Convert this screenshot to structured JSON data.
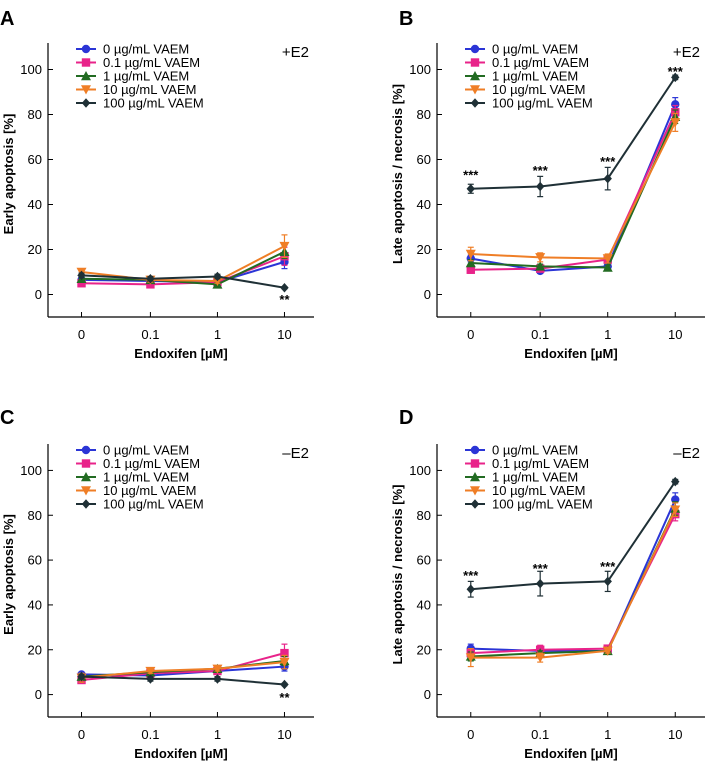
{
  "chart_data": [
    {
      "type": "line",
      "panel": "A",
      "condition": "+E2",
      "xlabel": "Endoxifen [µM]",
      "ylabel": "Early apoptosis [%]",
      "categories": [
        "0",
        "0.1",
        "1",
        "10"
      ],
      "ylim": [
        -10,
        110
      ],
      "yticks": [
        0,
        20,
        40,
        60,
        80,
        100
      ],
      "legend_position": "top-left",
      "series": [
        {
          "name": "0 µg/mL VAEM",
          "color": "#2b35d6",
          "marker": "circle",
          "values": [
            6.5,
            6,
            5.5,
            14.5
          ],
          "errors": [
            1,
            1,
            1,
            3
          ]
        },
        {
          "name": "0.1 µg/mL VAEM",
          "color": "#e8238a",
          "marker": "square",
          "values": [
            5,
            4.5,
            5.5,
            17
          ],
          "errors": [
            1,
            1,
            1,
            4
          ]
        },
        {
          "name": "1 µg/mL VAEM",
          "color": "#226b22",
          "marker": "triangle-up",
          "values": [
            7,
            6.5,
            4.5,
            19
          ],
          "errors": [
            1,
            1,
            1,
            3
          ]
        },
        {
          "name": "10 µg/mL VAEM",
          "color": "#ef7e26",
          "marker": "triangle-down",
          "values": [
            10,
            6.5,
            6,
            21.5
          ],
          "errors": [
            1,
            1,
            1,
            5
          ]
        },
        {
          "name": "100 µg/mL VAEM",
          "color": "#1f3036",
          "marker": "diamond",
          "values": [
            8.5,
            7,
            8,
            3
          ],
          "errors": [
            1,
            1,
            1,
            0.5
          ]
        }
      ],
      "annotations": [
        {
          "category": "10",
          "value": -2.5,
          "text": "**"
        }
      ]
    },
    {
      "type": "line",
      "panel": "B",
      "condition": "+E2",
      "xlabel": "Endoxifen [µM]",
      "ylabel": "Late apoptosis / necrosis [%]",
      "categories": [
        "0",
        "0.1",
        "1",
        "10"
      ],
      "ylim": [
        -10,
        110
      ],
      "yticks": [
        0,
        20,
        40,
        60,
        80,
        100
      ],
      "legend_position": "top-left",
      "series": [
        {
          "name": "0 µg/mL VAEM",
          "color": "#2b35d6",
          "marker": "circle",
          "values": [
            16,
            10.5,
            12.5,
            84.5
          ],
          "errors": [
            1.5,
            1,
            1,
            3
          ]
        },
        {
          "name": "0.1 µg/mL VAEM",
          "color": "#e8238a",
          "marker": "square",
          "values": [
            11,
            11.5,
            15.5,
            81
          ],
          "errors": [
            1.5,
            1,
            1,
            3
          ]
        },
        {
          "name": "1 µg/mL VAEM",
          "color": "#226b22",
          "marker": "triangle-up",
          "values": [
            14,
            12.5,
            12,
            79
          ],
          "errors": [
            1.5,
            1,
            1,
            3
          ]
        },
        {
          "name": "10 µg/mL VAEM",
          "color": "#ef7e26",
          "marker": "triangle-down",
          "values": [
            18,
            16.5,
            16,
            76.5
          ],
          "errors": [
            3,
            2,
            2,
            4
          ]
        },
        {
          "name": "100 µg/mL VAEM",
          "color": "#1f3036",
          "marker": "diamond",
          "values": [
            47,
            48,
            51.5,
            96.5
          ],
          "errors": [
            2,
            4.5,
            5,
            1
          ]
        }
      ],
      "annotations": [
        {
          "category": "0",
          "value": 53,
          "text": "***"
        },
        {
          "category": "0.1",
          "value": 55,
          "text": "***"
        },
        {
          "category": "1",
          "value": 59,
          "text": "***"
        },
        {
          "category": "10",
          "value": 99,
          "text": "***"
        }
      ]
    },
    {
      "type": "line",
      "panel": "C",
      "condition": "–E2",
      "xlabel": "Endoxifen [µM]",
      "ylabel": "Early apoptosis [%]",
      "categories": [
        "0",
        "0.1",
        "1",
        "10"
      ],
      "ylim": [
        -10,
        110
      ],
      "yticks": [
        0,
        20,
        40,
        60,
        80,
        100
      ],
      "legend_position": "top-left",
      "series": [
        {
          "name": "0 µg/mL VAEM",
          "color": "#2b35d6",
          "marker": "circle",
          "values": [
            9,
            8.5,
            10.5,
            12.5
          ],
          "errors": [
            1,
            1,
            1,
            2
          ]
        },
        {
          "name": "0.1 µg/mL VAEM",
          "color": "#e8238a",
          "marker": "square",
          "values": [
            6.5,
            9.5,
            10.5,
            18.5
          ],
          "errors": [
            1,
            1,
            1,
            4
          ]
        },
        {
          "name": "1 µg/mL VAEM",
          "color": "#226b22",
          "marker": "triangle-up",
          "values": [
            8,
            10,
            11.5,
            15
          ],
          "errors": [
            1,
            1,
            1,
            2
          ]
        },
        {
          "name": "10 µg/mL VAEM",
          "color": "#ef7e26",
          "marker": "triangle-down",
          "values": [
            7.5,
            10.5,
            11.5,
            14.5
          ],
          "errors": [
            2,
            1,
            1,
            3
          ]
        },
        {
          "name": "100 µg/mL VAEM",
          "color": "#1f3036",
          "marker": "diamond",
          "values": [
            8,
            7,
            7,
            4.5
          ],
          "errors": [
            1,
            1,
            1,
            0.5
          ]
        }
      ],
      "annotations": [
        {
          "category": "10",
          "value": -1.5,
          "text": "**"
        }
      ]
    },
    {
      "type": "line",
      "panel": "D",
      "condition": "–E2",
      "xlabel": "Endoxifen [µM]",
      "ylabel": "Late apoptosis / necrosis [%]",
      "categories": [
        "0",
        "0.1",
        "1",
        "10"
      ],
      "ylim": [
        -10,
        110
      ],
      "yticks": [
        0,
        20,
        40,
        60,
        80,
        100
      ],
      "legend_position": "top-left",
      "series": [
        {
          "name": "0 µg/mL VAEM",
          "color": "#2b35d6",
          "marker": "circle",
          "values": [
            20.5,
            19.5,
            19.5,
            87
          ],
          "errors": [
            2,
            2,
            1,
            3
          ]
        },
        {
          "name": "0.1 µg/mL VAEM",
          "color": "#e8238a",
          "marker": "square",
          "values": [
            18.5,
            20,
            20.5,
            80.5
          ],
          "errors": [
            2,
            2,
            1,
            3
          ]
        },
        {
          "name": "1 µg/mL VAEM",
          "color": "#226b22",
          "marker": "triangle-up",
          "values": [
            17,
            18.5,
            19.5,
            83
          ],
          "errors": [
            2,
            1,
            1,
            3
          ]
        },
        {
          "name": "10 µg/mL VAEM",
          "color": "#ef7e26",
          "marker": "triangle-down",
          "values": [
            16.5,
            16.5,
            19.5,
            82.5
          ],
          "errors": [
            4,
            2,
            1,
            3
          ]
        },
        {
          "name": "100 µg/mL VAEM",
          "color": "#1f3036",
          "marker": "diamond",
          "values": [
            47,
            49.5,
            50.5,
            95
          ],
          "errors": [
            3.5,
            5.5,
            4.5,
            1
          ]
        }
      ],
      "annotations": [
        {
          "category": "0",
          "value": 53,
          "text": "***"
        },
        {
          "category": "0.1",
          "value": 56,
          "text": "***"
        },
        {
          "category": "1",
          "value": 57,
          "text": "***"
        }
      ]
    }
  ]
}
